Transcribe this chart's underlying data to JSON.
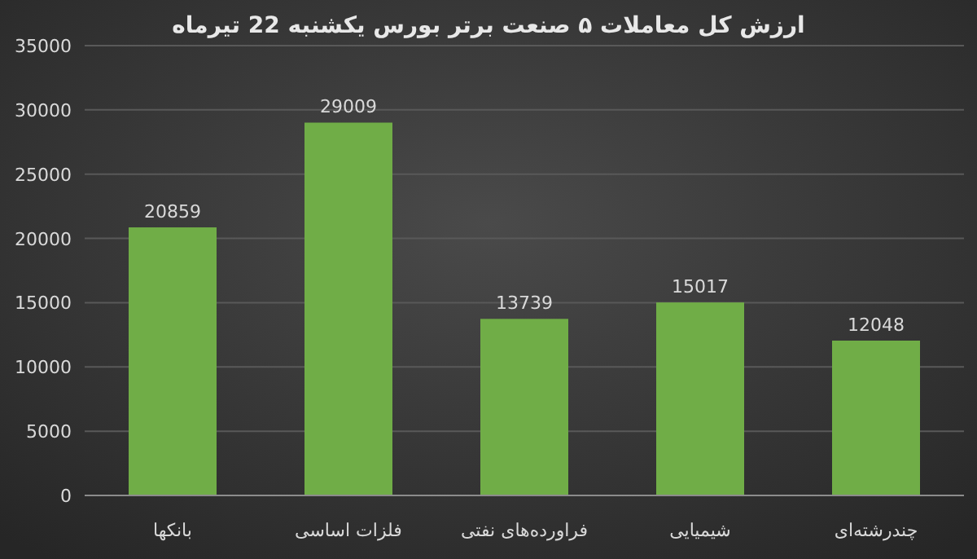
{
  "chart_data": {
    "type": "bar",
    "title": "ارزش کل معاملات ۵ صنعت برتر بورس یکشنبه 22 تیرماه",
    "categories": [
      "بانکها",
      "فلزات اساسی",
      "فراورده‌های نفتی",
      "شیمیایی",
      "چندرشته‌ای"
    ],
    "values": [
      20859,
      29009,
      13739,
      15017,
      12048
    ],
    "color": "#70ad47",
    "ylim": [
      0,
      35000
    ],
    "yticks": [
      0,
      5000,
      10000,
      15000,
      20000,
      25000,
      30000,
      35000
    ],
    "grid": "y",
    "data_labels": true
  }
}
